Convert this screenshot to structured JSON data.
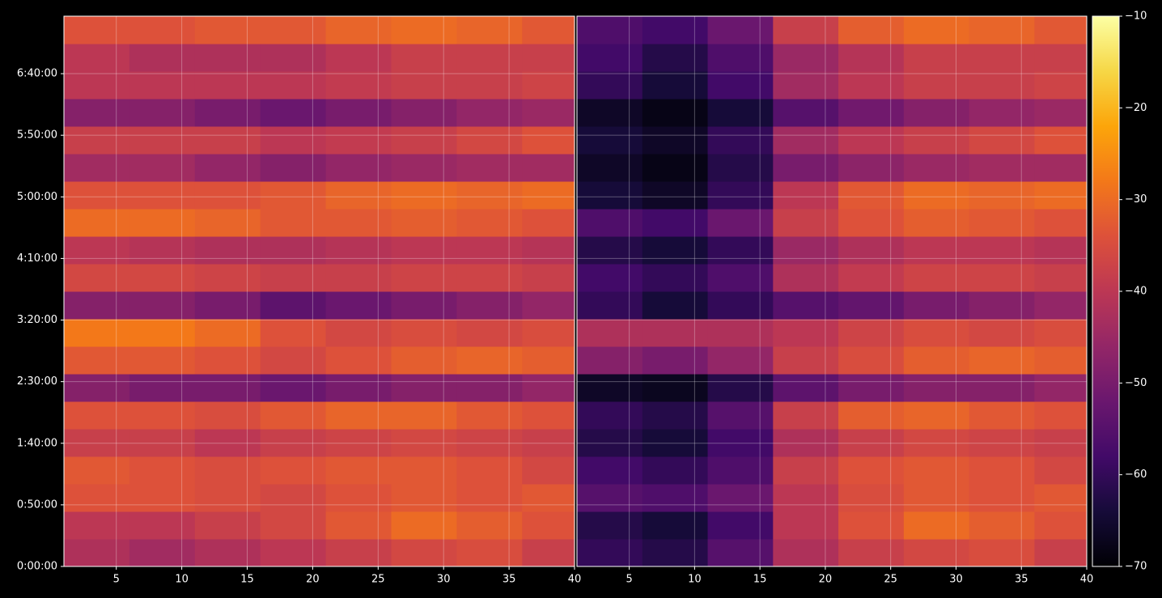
{
  "chart_data": [
    {
      "type": "heatmap",
      "xlim": [
        1,
        40
      ],
      "xticks": [
        5,
        10,
        15,
        20,
        25,
        30,
        35,
        40
      ],
      "ylim": [
        0,
        26800
      ],
      "yticks": [
        {
          "value": 0,
          "label": "0:00:00"
        },
        {
          "value": 3000,
          "label": "0:50:00"
        },
        {
          "value": 6000,
          "label": "1:40:00"
        },
        {
          "value": 9000,
          "label": "2:30:00"
        },
        {
          "value": 12000,
          "label": "3:20:00"
        },
        {
          "value": 15000,
          "label": "4:10:00"
        },
        {
          "value": 18000,
          "label": "5:00:00"
        },
        {
          "value": 21000,
          "label": "5:50:00"
        },
        {
          "value": 24000,
          "label": "6:40:00"
        }
      ],
      "grid": true,
      "x_bins": [
        1,
        6,
        11,
        16,
        21,
        26,
        31,
        36,
        40
      ],
      "y_bins": [
        0,
        1340,
        2680,
        4020,
        5360,
        6700,
        8040,
        9380,
        10720,
        12060,
        13400,
        14740,
        16080,
        17420,
        18760,
        20100,
        21440,
        22780,
        24120,
        25460,
        26800
      ],
      "values": [
        [
          -42,
          -44,
          -42,
          -40,
          -38,
          -36,
          -35,
          -38
        ],
        [
          -40,
          -40,
          -38,
          -36,
          -33,
          -30,
          -32,
          -34
        ],
        [
          -34,
          -34,
          -35,
          -36,
          -34,
          -33,
          -34,
          -33
        ],
        [
          -33,
          -34,
          -35,
          -34,
          -33,
          -33,
          -34,
          -36
        ],
        [
          -38,
          -38,
          -40,
          -38,
          -37,
          -36,
          -37,
          -38
        ],
        [
          -34,
          -34,
          -35,
          -33,
          -31,
          -31,
          -33,
          -34
        ],
        [
          -48,
          -50,
          -50,
          -52,
          -50,
          -48,
          -48,
          -46
        ],
        [
          -33,
          -33,
          -34,
          -36,
          -34,
          -32,
          -31,
          -32
        ],
        [
          -28,
          -28,
          -30,
          -34,
          -36,
          -35,
          -36,
          -35
        ],
        [
          -48,
          -48,
          -50,
          -54,
          -52,
          -50,
          -48,
          -46
        ],
        [
          -36,
          -36,
          -37,
          -38,
          -38,
          -37,
          -37,
          -38
        ],
        [
          -40,
          -41,
          -42,
          -42,
          -41,
          -40,
          -40,
          -41
        ],
        [
          -30,
          -30,
          -31,
          -33,
          -33,
          -32,
          -33,
          -34
        ],
        [
          -34,
          -34,
          -34,
          -33,
          -31,
          -30,
          -31,
          -30
        ],
        [
          -44,
          -44,
          -46,
          -48,
          -46,
          -45,
          -44,
          -44
        ],
        [
          -38,
          -38,
          -38,
          -40,
          -39,
          -38,
          -36,
          -34
        ],
        [
          -48,
          -48,
          -50,
          -52,
          -50,
          -48,
          -46,
          -45
        ],
        [
          -40,
          -40,
          -40,
          -40,
          -39,
          -38,
          -38,
          -37
        ],
        [
          -40,
          -42,
          -42,
          -42,
          -40,
          -38,
          -38,
          -38
        ],
        [
          -34,
          -34,
          -33,
          -33,
          -31,
          -30,
          -31,
          -33
        ]
      ]
    },
    {
      "type": "heatmap",
      "xlim": [
        1,
        40
      ],
      "xticks": [
        5,
        10,
        15,
        20,
        25,
        30,
        35,
        40
      ],
      "ylim": [
        0,
        26800
      ],
      "grid": true,
      "x_bins": [
        1,
        6,
        11,
        16,
        21,
        26,
        31,
        36,
        40
      ],
      "y_bins": [
        0,
        1340,
        2680,
        4020,
        5360,
        6700,
        8040,
        9380,
        10720,
        12060,
        13400,
        14740,
        16080,
        17420,
        18760,
        20100,
        21440,
        22780,
        24120,
        25460,
        26800
      ],
      "values": [
        [
          -60,
          -62,
          -55,
          -42,
          -38,
          -36,
          -35,
          -38
        ],
        [
          -62,
          -64,
          -58,
          -40,
          -34,
          -30,
          -32,
          -34
        ],
        [
          -55,
          -56,
          -52,
          -40,
          -35,
          -33,
          -34,
          -33
        ],
        [
          -58,
          -60,
          -56,
          -38,
          -34,
          -33,
          -34,
          -36
        ],
        [
          -62,
          -64,
          -58,
          -42,
          -38,
          -36,
          -37,
          -38
        ],
        [
          -60,
          -62,
          -55,
          -38,
          -32,
          -31,
          -33,
          -34
        ],
        [
          -66,
          -67,
          -62,
          -54,
          -50,
          -48,
          -48,
          -46
        ],
        [
          -48,
          -50,
          -46,
          -38,
          -35,
          -32,
          -31,
          -32
        ],
        [
          -42,
          -42,
          -42,
          -40,
          -37,
          -35,
          -36,
          -35
        ],
        [
          -60,
          -64,
          -60,
          -55,
          -53,
          -50,
          -48,
          -46
        ],
        [
          -58,
          -60,
          -56,
          -42,
          -39,
          -37,
          -37,
          -38
        ],
        [
          -62,
          -64,
          -60,
          -45,
          -42,
          -40,
          -40,
          -41
        ],
        [
          -56,
          -58,
          -52,
          -38,
          -34,
          -32,
          -33,
          -34
        ],
        [
          -64,
          -66,
          -60,
          -40,
          -33,
          -30,
          -31,
          -30
        ],
        [
          -66,
          -68,
          -62,
          -50,
          -47,
          -45,
          -44,
          -44
        ],
        [
          -64,
          -66,
          -60,
          -44,
          -40,
          -38,
          -36,
          -34
        ],
        [
          -66,
          -68,
          -64,
          -55,
          -51,
          -48,
          -46,
          -45
        ],
        [
          -60,
          -64,
          -58,
          -44,
          -40,
          -38,
          -38,
          -37
        ],
        [
          -58,
          -62,
          -56,
          -45,
          -41,
          -38,
          -38,
          -38
        ],
        [
          -56,
          -58,
          -52,
          -38,
          -32,
          -30,
          -31,
          -33
        ]
      ],
      "colormap": "inferno",
      "clim": [
        -70,
        -10
      ],
      "cticks": [
        {
          "value": -70,
          "label": "−70"
        },
        {
          "value": -60,
          "label": "−60"
        },
        {
          "value": -50,
          "label": "−50"
        },
        {
          "value": -40,
          "label": "−40"
        },
        {
          "value": -30,
          "label": "−30"
        },
        {
          "value": -20,
          "label": "−20"
        },
        {
          "value": -10,
          "label": "−10"
        }
      ]
    }
  ]
}
